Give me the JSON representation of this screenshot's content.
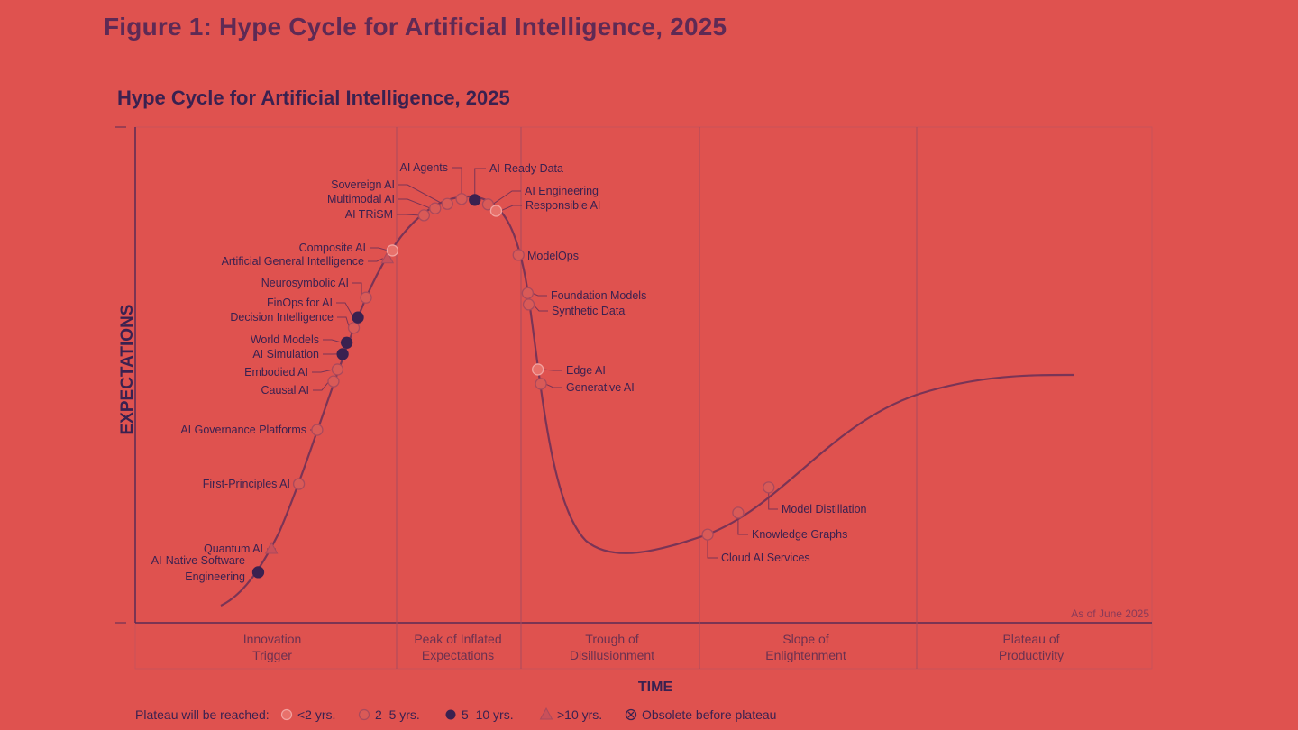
{
  "figure_title": "Figure 1: Hype Cycle for Artificial Intelligence, 2025",
  "chart_data": {
    "type": "scatter",
    "title": "Hype Cycle for Artificial Intelligence, 2025",
    "xlabel": "TIME",
    "ylabel": "EXPECTATIONS",
    "xlim": [
      0,
      100
    ],
    "ylim": [
      0,
      100
    ],
    "annotation": "As of June 2025",
    "phases": [
      "Innovation Trigger",
      "Peak of Inflated Expectations",
      "Trough of Disillusionment",
      "Slope of Enlightenment",
      "Plateau of Productivity"
    ],
    "phase_lines": [
      "Innovation",
      "Trigger",
      "Peak of Inflated",
      "Expectations",
      "Trough of",
      "Disillusionment",
      "Slope of",
      "Enlightenment",
      "Plateau of",
      "Productivity"
    ],
    "legend": {
      "title": "Plateau will be reached:",
      "items": [
        {
          "key": "lt2",
          "label": "<2 yrs."
        },
        {
          "key": "2to5",
          "label": "2–5 yrs."
        },
        {
          "key": "5to10",
          "label": "5–10 yrs."
        },
        {
          "key": "gt10",
          "label": ">10 yrs."
        },
        {
          "key": "obsolete",
          "label": "Obsolete before plateau"
        }
      ]
    },
    "points": [
      {
        "name": "AI-Native Software Engineering",
        "lines": [
          "AI-Native Software",
          "Engineering"
        ],
        "time": 12.1,
        "expectations": 10.2,
        "plateau": "5to10"
      },
      {
        "name": "Quantum AI",
        "time": 13.4,
        "expectations": 14.9,
        "plateau": "gt10"
      },
      {
        "name": "First-Principles AI",
        "time": 16.1,
        "expectations": 28.0,
        "plateau": "2to5"
      },
      {
        "name": "AI Governance Platforms",
        "time": 17.9,
        "expectations": 38.9,
        "plateau": "2to5"
      },
      {
        "name": "Causal AI",
        "time": 19.5,
        "expectations": 48.7,
        "plateau": "2to5"
      },
      {
        "name": "Embodied AI",
        "time": 19.9,
        "expectations": 51.1,
        "plateau": "2to5"
      },
      {
        "name": "AI Simulation",
        "time": 20.4,
        "expectations": 54.2,
        "plateau": "5to10"
      },
      {
        "name": "World Models",
        "time": 20.8,
        "expectations": 56.5,
        "plateau": "5to10"
      },
      {
        "name": "Decision Intelligence",
        "time": 21.5,
        "expectations": 59.5,
        "plateau": "2to5"
      },
      {
        "name": "FinOps for AI",
        "time": 21.9,
        "expectations": 61.6,
        "plateau": "5to10"
      },
      {
        "name": "Neurosymbolic AI",
        "time": 22.7,
        "expectations": 65.6,
        "plateau": "2to5"
      },
      {
        "name": "Artificial General Intelligence",
        "time": 24.8,
        "expectations": 73.5,
        "plateau": "gt10"
      },
      {
        "name": "Composite AI",
        "time": 25.3,
        "expectations": 75.1,
        "plateau": "lt2"
      },
      {
        "name": "AI TRiSM",
        "time": 28.4,
        "expectations": 82.2,
        "plateau": "2to5"
      },
      {
        "name": "Multimodal AI",
        "time": 29.5,
        "expectations": 83.6,
        "plateau": "2to5"
      },
      {
        "name": "Sovereign AI",
        "time": 30.7,
        "expectations": 84.5,
        "plateau": "2to5"
      },
      {
        "name": "AI Agents",
        "time": 32.1,
        "expectations": 85.5,
        "plateau": "2to5"
      },
      {
        "name": "AI-Ready Data",
        "time": 33.4,
        "expectations": 85.3,
        "plateau": "5to10"
      },
      {
        "name": "AI Engineering",
        "time": 34.7,
        "expectations": 84.4,
        "plateau": "2to5"
      },
      {
        "name": "Responsible AI",
        "time": 35.5,
        "expectations": 83.1,
        "plateau": "lt2"
      },
      {
        "name": "ModelOps",
        "time": 37.7,
        "expectations": 74.2,
        "plateau": "2to5"
      },
      {
        "name": "Foundation Models",
        "time": 38.6,
        "expectations": 66.5,
        "plateau": "2to5"
      },
      {
        "name": "Synthetic Data",
        "time": 38.7,
        "expectations": 64.2,
        "plateau": "2to5"
      },
      {
        "name": "Edge AI",
        "time": 39.6,
        "expectations": 51.1,
        "plateau": "lt2"
      },
      {
        "name": "Generative AI",
        "time": 39.9,
        "expectations": 48.2,
        "plateau": "2to5"
      },
      {
        "name": "Cloud AI Services",
        "time": 56.3,
        "expectations": 17.8,
        "plateau": "2to5"
      },
      {
        "name": "Knowledge Graphs",
        "time": 59.3,
        "expectations": 22.2,
        "plateau": "2to5"
      },
      {
        "name": "Model Distillation",
        "time": 62.3,
        "expectations": 27.3,
        "plateau": "2to5"
      }
    ],
    "colors": {
      "background": "#df524f",
      "text": "#3a2150",
      "curve": "#7a3456",
      "lt2_fill": "#e8716b",
      "lt2_stroke": "#f2a3a0",
      "2to5_fill": "#d95a57",
      "2to5_stroke": "#a9495c",
      "5to10_fill": "#3a2150",
      "gt10_fill": "#c9505a"
    }
  }
}
